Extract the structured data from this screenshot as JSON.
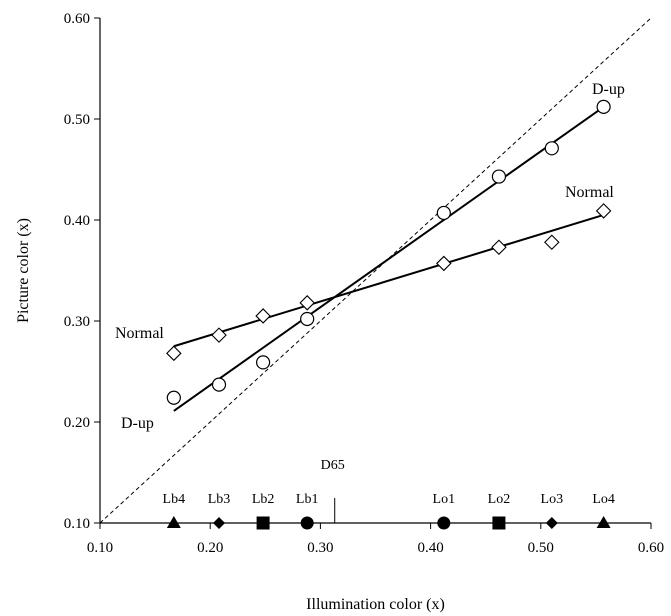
{
  "chart_data": {
    "type": "scatter",
    "xlabel": "Illumination color (x)",
    "ylabel": "Picture color (x)",
    "xlim": [
      0.1,
      0.6
    ],
    "ylim": [
      0.1,
      0.6
    ],
    "x_ticks": [
      "0.10",
      "0.20",
      "0.30",
      "0.40",
      "0.50",
      "0.60"
    ],
    "y_ticks": [
      "0.10",
      "0.20",
      "0.30",
      "0.40",
      "0.50",
      "0.60"
    ],
    "grid": false,
    "reference_line": {
      "style": "dashed",
      "from": [
        0.1,
        0.1
      ],
      "to": [
        0.6,
        0.6
      ]
    },
    "series": [
      {
        "name": "D-up",
        "marker": "circle",
        "x": [
          0.167,
          0.208,
          0.248,
          0.288,
          0.412,
          0.462,
          0.51,
          0.557
        ],
        "y": [
          0.224,
          0.237,
          0.259,
          0.302,
          0.407,
          0.443,
          0.471,
          0.512
        ],
        "fit": {
          "from": [
            0.167,
            0.211
          ],
          "to": [
            0.557,
            0.512
          ]
        }
      },
      {
        "name": "Normal",
        "marker": "diamond",
        "x": [
          0.167,
          0.208,
          0.248,
          0.288,
          0.412,
          0.462,
          0.51,
          0.557
        ],
        "y": [
          0.268,
          0.286,
          0.305,
          0.318,
          0.357,
          0.373,
          0.378,
          0.409
        ],
        "fit": {
          "from": [
            0.167,
            0.275
          ],
          "to": [
            0.557,
            0.405
          ]
        }
      }
    ],
    "annotations": {
      "d_up_upper": "D-up",
      "d_up_lower": "D-up",
      "normal_upper": "Normal",
      "normal_lower": "Normal",
      "d65": "D65"
    },
    "d65_x": 0.313,
    "illuminants": [
      {
        "label": "Lb4",
        "x": 0.167,
        "marker": "triangle"
      },
      {
        "label": "Lb3",
        "x": 0.208,
        "marker": "diamond"
      },
      {
        "label": "Lb2",
        "x": 0.248,
        "marker": "square"
      },
      {
        "label": "Lb1",
        "x": 0.288,
        "marker": "circle"
      },
      {
        "label": "Lo1",
        "x": 0.412,
        "marker": "circle"
      },
      {
        "label": "Lo2",
        "x": 0.462,
        "marker": "square"
      },
      {
        "label": "Lo3",
        "x": 0.51,
        "marker": "diamond"
      },
      {
        "label": "Lo4",
        "x": 0.557,
        "marker": "triangle"
      }
    ]
  }
}
